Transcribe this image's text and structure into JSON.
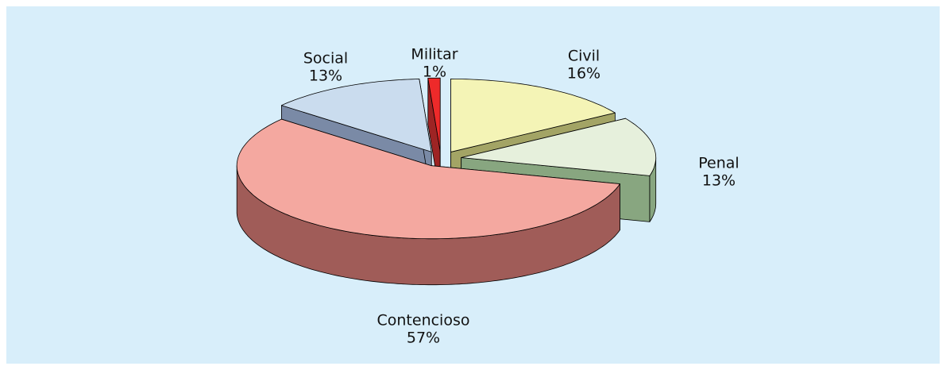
{
  "chart_data": {
    "type": "pie",
    "categories": [
      "Civil",
      "Penal",
      "Contencioso",
      "Social",
      "Militar"
    ],
    "values": [
      16,
      13,
      57,
      13,
      1
    ],
    "value_labels": [
      "16%",
      "13%",
      "57%",
      "13%",
      "1%"
    ],
    "colors": [
      "#f4f4b6",
      "#e6f0dc",
      "#f4a8a0",
      "#cadcee",
      "#ee2a2a"
    ],
    "side_colors": [
      "#a3a465",
      "#88a680",
      "#a05c58",
      "#7a8aa6",
      "#9e2424"
    ]
  }
}
